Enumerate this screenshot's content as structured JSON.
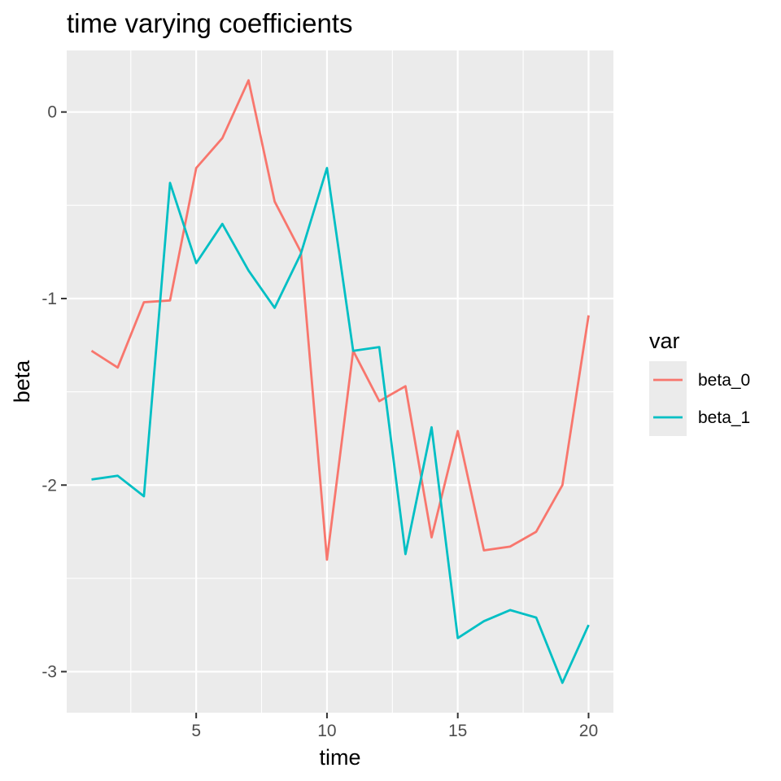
{
  "chart_data": {
    "type": "line",
    "title": "time varying coefficients",
    "xlabel": "time",
    "ylabel": "beta",
    "xlim": [
      0.05,
      20.95
    ],
    "ylim": [
      -3.22,
      0.33
    ],
    "x_ticks": [
      5,
      10,
      15,
      20
    ],
    "x_tick_labels": [
      "5",
      "10",
      "15",
      "20"
    ],
    "y_ticks": [
      0,
      -1,
      -2,
      -3
    ],
    "y_tick_labels": [
      "0",
      "-1",
      "-2",
      "-3"
    ],
    "grid": true,
    "legend": {
      "title": "var",
      "position": "right"
    },
    "x": [
      1,
      2,
      3,
      4,
      5,
      6,
      7,
      8,
      9,
      10,
      11,
      12,
      13,
      14,
      15,
      16,
      17,
      18,
      19,
      20
    ],
    "series": [
      {
        "name": "beta_0",
        "color": "#F8766D",
        "values": [
          -1.28,
          -1.37,
          -1.02,
          -1.01,
          -0.3,
          -0.14,
          0.17,
          -0.48,
          -0.75,
          -2.4,
          -1.28,
          -1.55,
          -1.47,
          -2.28,
          -1.71,
          -2.35,
          -2.33,
          -2.25,
          -2.0,
          -1.09
        ]
      },
      {
        "name": "beta_1",
        "color": "#00BFC4",
        "values": [
          -1.97,
          -1.95,
          -2.06,
          -0.38,
          -0.81,
          -0.6,
          -0.85,
          -1.05,
          -0.76,
          -0.3,
          -1.28,
          -1.26,
          -2.37,
          -1.69,
          -2.82,
          -2.73,
          -2.67,
          -2.71,
          -3.06,
          -2.75
        ]
      }
    ]
  }
}
